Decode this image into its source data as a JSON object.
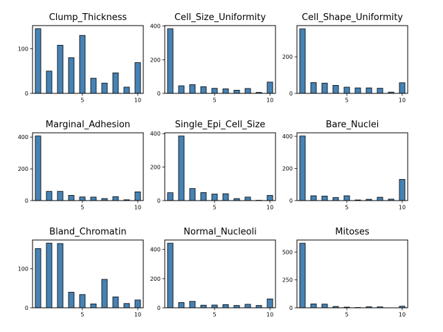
{
  "bar_color": "#4682b4",
  "chart_data": [
    {
      "type": "bar",
      "title": "Clump_Thickness",
      "x": [
        1,
        2,
        3,
        4,
        5,
        6,
        7,
        8,
        9,
        10
      ],
      "values": [
        145,
        50,
        108,
        80,
        130,
        34,
        23,
        46,
        14,
        69
      ],
      "xlim": [
        0.5,
        10.5
      ],
      "ylim": [
        0,
        152
      ],
      "xticks": [
        5,
        10
      ],
      "yticks": [
        0,
        100
      ]
    },
    {
      "type": "bar",
      "title": "Cell_Size_Uniformity",
      "x": [
        1,
        2,
        3,
        4,
        5,
        6,
        7,
        8,
        9,
        10
      ],
      "values": [
        384,
        45,
        52,
        40,
        30,
        27,
        19,
        29,
        6,
        67
      ],
      "xlim": [
        0.5,
        10.5
      ],
      "ylim": [
        0,
        403
      ],
      "xticks": [
        5,
        10
      ],
      "yticks": [
        0,
        200,
        400
      ]
    },
    {
      "type": "bar",
      "title": "Cell_Shape_Uniformity",
      "x": [
        1,
        2,
        3,
        4,
        5,
        6,
        7,
        8,
        9,
        10
      ],
      "values": [
        353,
        59,
        56,
        44,
        34,
        30,
        30,
        28,
        7,
        58
      ],
      "xlim": [
        0.5,
        10.5
      ],
      "ylim": [
        0,
        371
      ],
      "xticks": [
        5,
        10
      ],
      "yticks": [
        0,
        200
      ]
    },
    {
      "type": "bar",
      "title": "Marginal_Adhesion",
      "x": [
        1,
        2,
        3,
        4,
        5,
        6,
        7,
        8,
        9,
        10
      ],
      "values": [
        407,
        58,
        58,
        33,
        23,
        22,
        13,
        25,
        5,
        55
      ],
      "xlim": [
        0.5,
        10.5
      ],
      "ylim": [
        0,
        427
      ],
      "xticks": [
        5,
        10
      ],
      "yticks": [
        0,
        200,
        400
      ]
    },
    {
      "type": "bar",
      "title": "Single_Epi_Cell_Size",
      "x": [
        1,
        2,
        3,
        4,
        5,
        6,
        7,
        8,
        9,
        10
      ],
      "values": [
        47,
        386,
        72,
        48,
        39,
        41,
        12,
        21,
        2,
        31
      ],
      "xlim": [
        0.5,
        10.5
      ],
      "ylim": [
        0,
        405
      ],
      "xticks": [
        5,
        10
      ],
      "yticks": [
        0,
        200,
        400
      ]
    },
    {
      "type": "bar",
      "title": "Bare_Nuclei",
      "x": [
        1,
        2,
        3,
        4,
        5,
        6,
        7,
        8,
        9,
        10
      ],
      "values": [
        402,
        30,
        28,
        19,
        30,
        4,
        8,
        21,
        9,
        132
      ],
      "xlim": [
        0.5,
        10.5
      ],
      "ylim": [
        0,
        422
      ],
      "xticks": [
        5,
        10
      ],
      "yticks": [
        0,
        200,
        400
      ]
    },
    {
      "type": "bar",
      "title": "Bland_Chromatin",
      "x": [
        1,
        2,
        3,
        4,
        5,
        6,
        7,
        8,
        9,
        10
      ],
      "values": [
        152,
        166,
        165,
        40,
        34,
        10,
        73,
        28,
        11,
        20
      ],
      "xlim": [
        0.5,
        10.5
      ],
      "ylim": [
        0,
        174
      ],
      "xticks": [
        5,
        10
      ],
      "yticks": [
        0,
        100
      ]
    },
    {
      "type": "bar",
      "title": "Normal_Nucleoli",
      "x": [
        1,
        2,
        3,
        4,
        5,
        6,
        7,
        8,
        9,
        10
      ],
      "values": [
        443,
        36,
        44,
        18,
        19,
        22,
        16,
        24,
        16,
        61
      ],
      "xlim": [
        0.5,
        10.5
      ],
      "ylim": [
        0,
        465
      ],
      "xticks": [
        5,
        10
      ],
      "yticks": [
        0,
        200,
        400
      ]
    },
    {
      "type": "bar",
      "title": "Mitoses",
      "x": [
        1,
        2,
        3,
        4,
        5,
        6,
        7,
        8,
        9,
        10
      ],
      "values": [
        579,
        35,
        33,
        12,
        6,
        3,
        9,
        8,
        0,
        14
      ],
      "xlim": [
        0.5,
        10.5
      ],
      "ylim": [
        0,
        608
      ],
      "xticks": [
        5,
        10
      ],
      "yticks": [
        0,
        250,
        500
      ]
    }
  ]
}
